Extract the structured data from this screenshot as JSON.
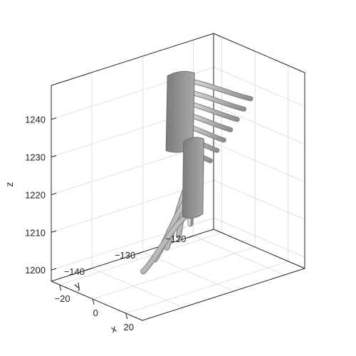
{
  "chart_data": {
    "type": "surface-3d",
    "title": "",
    "xlabel": "x",
    "ylabel": "y",
    "zlabel": "z",
    "x_ticks": [
      -20,
      0,
      20
    ],
    "y_ticks": [
      -120,
      -130,
      -140
    ],
    "z_ticks": [
      1200,
      1210,
      1220,
      1230,
      1240
    ],
    "xlim": [
      -25,
      30
    ],
    "ylim": [
      -116,
      -148
    ],
    "zlim": [
      1197,
      1249
    ],
    "grid": true,
    "surface_color": "#b4b4b4",
    "objects": [
      {
        "kind": "upper fan-shaped branching structure",
        "root_z": [
          1229,
          1247
        ],
        "tip_z": [
          1231,
          1246
        ]
      },
      {
        "kind": "lower fan-shaped branching structure",
        "root_z": [
          1209,
          1227
        ],
        "tip_z": [
          1202,
          1212
        ]
      }
    ]
  }
}
